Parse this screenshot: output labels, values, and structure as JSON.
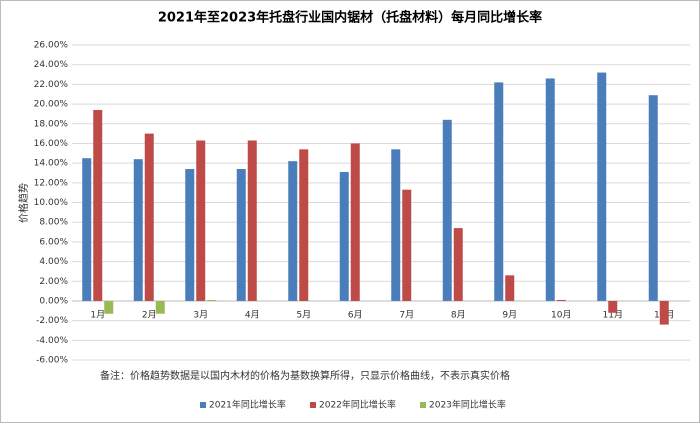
{
  "chart_data": {
    "type": "bar",
    "title": "2021年至2023年托盘行业国内锯材（托盘材料）每月同比增长率",
    "y_label": "价格趋势",
    "note": "备注：价格趋势数据是以国内木材的价格为基数换算所得，只显示价格曲线，不表示真实价格",
    "categories": [
      "1月",
      "2月",
      "3月",
      "4月",
      "5月",
      "6月",
      "7月",
      "8月",
      "9月",
      "10月",
      "11月",
      "12月"
    ],
    "series": [
      {
        "name": "2021年同比增长率",
        "color": "#4a7ebb",
        "values": [
          14.5,
          14.4,
          13.4,
          13.4,
          14.2,
          13.1,
          15.4,
          18.4,
          22.2,
          22.6,
          23.2,
          20.9
        ]
      },
      {
        "name": "2022年同比增长率",
        "color": "#be4b48",
        "values": [
          19.4,
          17.0,
          16.3,
          16.3,
          15.4,
          16.0,
          11.3,
          7.4,
          2.6,
          0.1,
          -1.2,
          -2.4
        ]
      },
      {
        "name": "2023年同比增长率",
        "color": "#98b954",
        "values": [
          -1.3,
          -1.3,
          0.1,
          null,
          null,
          null,
          null,
          null,
          null,
          null,
          null,
          null
        ]
      }
    ],
    "ylim": [
      -6,
      26
    ],
    "yticks": [
      {
        "value": -6,
        "label": "-6.00%"
      },
      {
        "value": -4,
        "label": "-4.00%"
      },
      {
        "value": -2,
        "label": "-2.00%"
      },
      {
        "value": 0,
        "label": "0.00%"
      },
      {
        "value": 2,
        "label": "2.00%"
      },
      {
        "value": 4,
        "label": "4.00%"
      },
      {
        "value": 6,
        "label": "6.00%"
      },
      {
        "value": 8,
        "label": "8.00%"
      },
      {
        "value": 10,
        "label": "10.00%"
      },
      {
        "value": 12,
        "label": "12.00%"
      },
      {
        "value": 14,
        "label": "14.00%"
      },
      {
        "value": 16,
        "label": "16.00%"
      },
      {
        "value": 18,
        "label": "18.00%"
      },
      {
        "value": 20,
        "label": "20.00%"
      },
      {
        "value": 22,
        "label": "22.00%"
      },
      {
        "value": 24,
        "label": "24.00%"
      },
      {
        "value": 26,
        "label": "26.00%"
      }
    ],
    "grid": true
  }
}
